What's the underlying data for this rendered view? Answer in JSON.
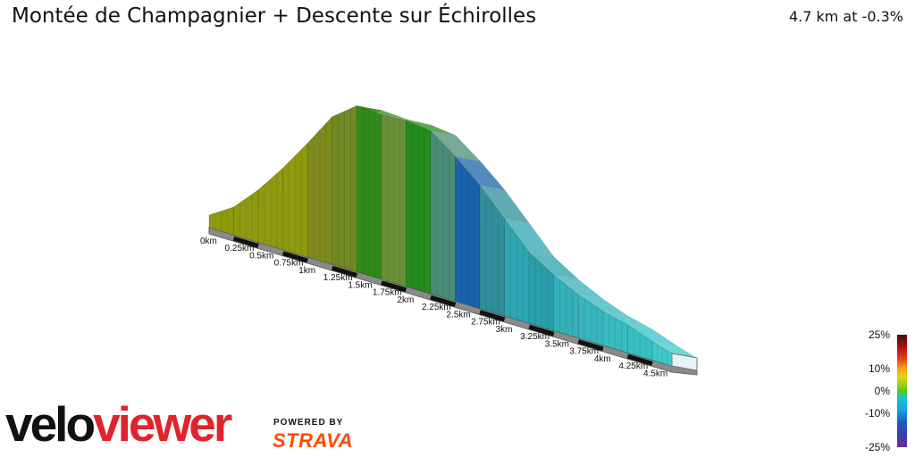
{
  "header": {
    "title": "Montée de Champagnier + Descente sur Échirolles",
    "summary": "4.7 km at -0.3%"
  },
  "chart_data": {
    "type": "area",
    "title": "Montée de Champagnier + Descente sur Échirolles",
    "distance_labels": [
      "0km",
      "0.25km",
      "0.5km",
      "0.75km",
      "1km",
      "1.25km",
      "1.5km",
      "1.75km",
      "2km",
      "2.25km",
      "2.5km",
      "2.75km",
      "3km",
      "3.25km",
      "3.5km",
      "3.75km",
      "4km",
      "4.25km",
      "4.5km"
    ],
    "profile": {
      "x_km": [
        0,
        0.25,
        0.5,
        0.75,
        1.0,
        1.25,
        1.5,
        1.75,
        2.0,
        2.25,
        2.5,
        2.75,
        3.0,
        3.25,
        3.5,
        3.75,
        4.0,
        4.25,
        4.5,
        4.7
      ],
      "elevation_rel": [
        0.0,
        0.1,
        0.26,
        0.45,
        0.66,
        0.88,
        1.0,
        0.99,
        1.0,
        0.98,
        0.86,
        0.72,
        0.55,
        0.38,
        0.28,
        0.2,
        0.14,
        0.1,
        0.04,
        0.0
      ],
      "gradient_colors": [
        "#8f9a10",
        "#8f9a10",
        "#8f9a10",
        "#8f9a10",
        "#7f8a1e",
        "#6f8a22",
        "#2f8c1c",
        "#6a8f3a",
        "#228c1c",
        "#4a8d77",
        "#1b63a8",
        "#2f8f9a",
        "#2ea5b2",
        "#2a9faa",
        "#33b0b8",
        "#36b6bc",
        "#38bcbf",
        "#36c0c2",
        "#3fc8c8"
      ]
    },
    "legend": {
      "labels": [
        "25%",
        "10%",
        "0%",
        "-10%",
        "-25%"
      ],
      "values": [
        25,
        10,
        0,
        -10,
        -25
      ]
    },
    "xlabel": "",
    "ylabel": ""
  },
  "branding": {
    "logo_part1": "velo",
    "logo_part2": "viewer",
    "powered_by": "POWERED BY",
    "strava": "STRAVA"
  }
}
